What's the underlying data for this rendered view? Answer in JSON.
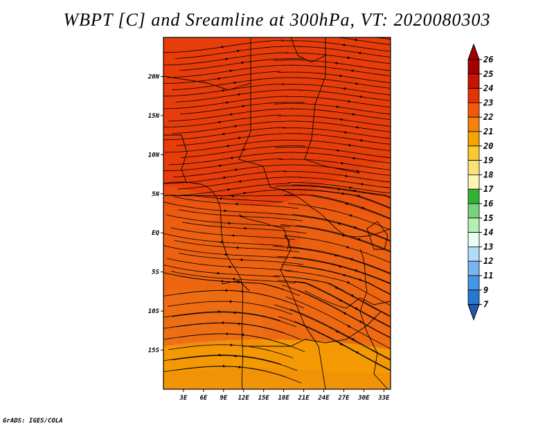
{
  "title": "WBPT [C] and Sreamline at 300hPa, VT: 2020080303",
  "footer": "GrADS: IGES/COLA",
  "map": {
    "lat_ticks": [
      "20N",
      "15N",
      "10N",
      "5N",
      "EQ",
      "5S",
      "10S",
      "15S"
    ],
    "lat_values": [
      20,
      15,
      10,
      5,
      0,
      -5,
      -10,
      -15
    ],
    "lon_ticks": [
      "3E",
      "6E",
      "9E",
      "12E",
      "15E",
      "18E",
      "21E",
      "24E",
      "27E",
      "30E",
      "33E"
    ],
    "lon_values": [
      3,
      6,
      9,
      12,
      15,
      18,
      21,
      24,
      27,
      30,
      33
    ],
    "lon_range": [
      0,
      34
    ],
    "lat_range": [
      -20,
      25
    ]
  },
  "colorbar": {
    "labels": [
      "26",
      "25",
      "24",
      "23",
      "22",
      "21",
      "20",
      "19",
      "18",
      "17",
      "16",
      "15",
      "14",
      "13",
      "12",
      "11",
      "9",
      "7"
    ],
    "colors": [
      "#a50000",
      "#c81400",
      "#e63200",
      "#f05a0a",
      "#f5820a",
      "#f5a500",
      "#fac832",
      "#fae178",
      "#fff5b4",
      "#32b432",
      "#78d278",
      "#b4f0b4",
      "#e6fff0",
      "#b4dcfa",
      "#78b4f0",
      "#4696e6",
      "#2878d2",
      "#1e5ab4"
    ]
  }
}
